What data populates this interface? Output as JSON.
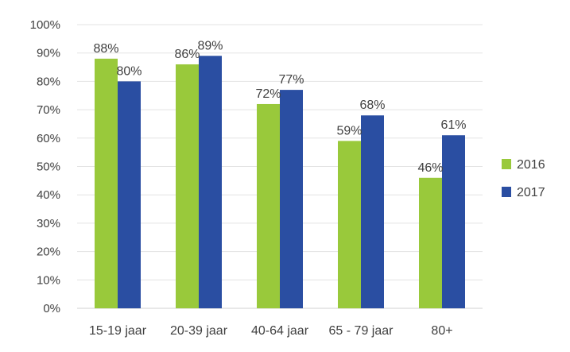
{
  "chart_data": {
    "type": "bar",
    "title": "",
    "xlabel": "",
    "ylabel": "",
    "categories": [
      "15-19 jaar",
      "20-39 jaar",
      "40-64 jaar",
      "65 - 79 jaar",
      "80+"
    ],
    "series": [
      {
        "name": "2016",
        "values": [
          88,
          86,
          72,
          59,
          46
        ],
        "labels": [
          "88%",
          "86%",
          "72%",
          "59%",
          "46%"
        ],
        "color": "#99c93b"
      },
      {
        "name": "2017",
        "values": [
          80,
          89,
          77,
          68,
          61
        ],
        "labels": [
          "80%",
          "89%",
          "77%",
          "68%",
          "61%"
        ],
        "color": "#2a4ea2"
      }
    ],
    "ylim": [
      0,
      100
    ],
    "yticks": [
      0,
      10,
      20,
      30,
      40,
      50,
      60,
      70,
      80,
      90,
      100
    ],
    "ytick_labels": [
      "0%",
      "10%",
      "20%",
      "30%",
      "40%",
      "50%",
      "60%",
      "70%",
      "80%",
      "90%",
      "100%"
    ],
    "grid": true,
    "legend_position": "right"
  }
}
